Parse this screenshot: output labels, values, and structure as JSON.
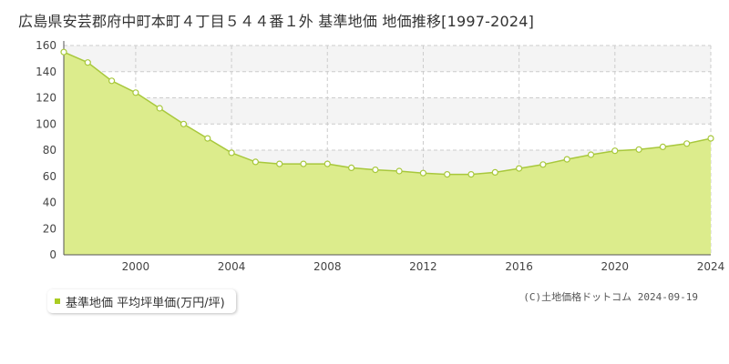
{
  "title": "広島県安芸郡府中町本町４丁目５４４番１外 基準地価 地価推移[1997-2024]",
  "legend": {
    "label": "基準地価 平均坪単価(万円/坪)"
  },
  "copyright": "(C)土地価格ドットコム 2024-09-19",
  "colors": {
    "area_fill": "#dcec8c",
    "line": "#a8c83c",
    "marker_fill": "#ffffff",
    "band": "#f4f4f4",
    "grid": "#cccccc"
  },
  "chart_data": {
    "type": "area",
    "title": "広島県安芸郡府中町本町４丁目５４４番１外 基準地価 地価推移[1997-2024]",
    "xlabel": "",
    "ylabel": "",
    "xlim": [
      1997,
      2024
    ],
    "ylim": [
      0,
      160
    ],
    "x_ticks": [
      2000,
      2004,
      2008,
      2012,
      2016,
      2020,
      2024
    ],
    "y_ticks": [
      0,
      20,
      40,
      60,
      80,
      100,
      120,
      140,
      160
    ],
    "grid": true,
    "legend_position": "bottom-left",
    "series": [
      {
        "name": "基準地価 平均坪単価(万円/坪)",
        "x": [
          1997,
          1998,
          1999,
          2000,
          2001,
          2002,
          2003,
          2004,
          2005,
          2006,
          2007,
          2008,
          2009,
          2010,
          2011,
          2012,
          2013,
          2014,
          2015,
          2016,
          2017,
          2018,
          2019,
          2020,
          2021,
          2022,
          2023,
          2024
        ],
        "values": [
          155,
          147,
          133,
          124,
          112,
          100,
          89,
          78,
          71,
          69.5,
          69.5,
          69.5,
          66.5,
          65,
          64,
          62.5,
          61.5,
          61.5,
          63,
          66,
          69,
          73,
          76.5,
          79.5,
          80.5,
          82.5,
          85,
          89
        ]
      }
    ]
  }
}
